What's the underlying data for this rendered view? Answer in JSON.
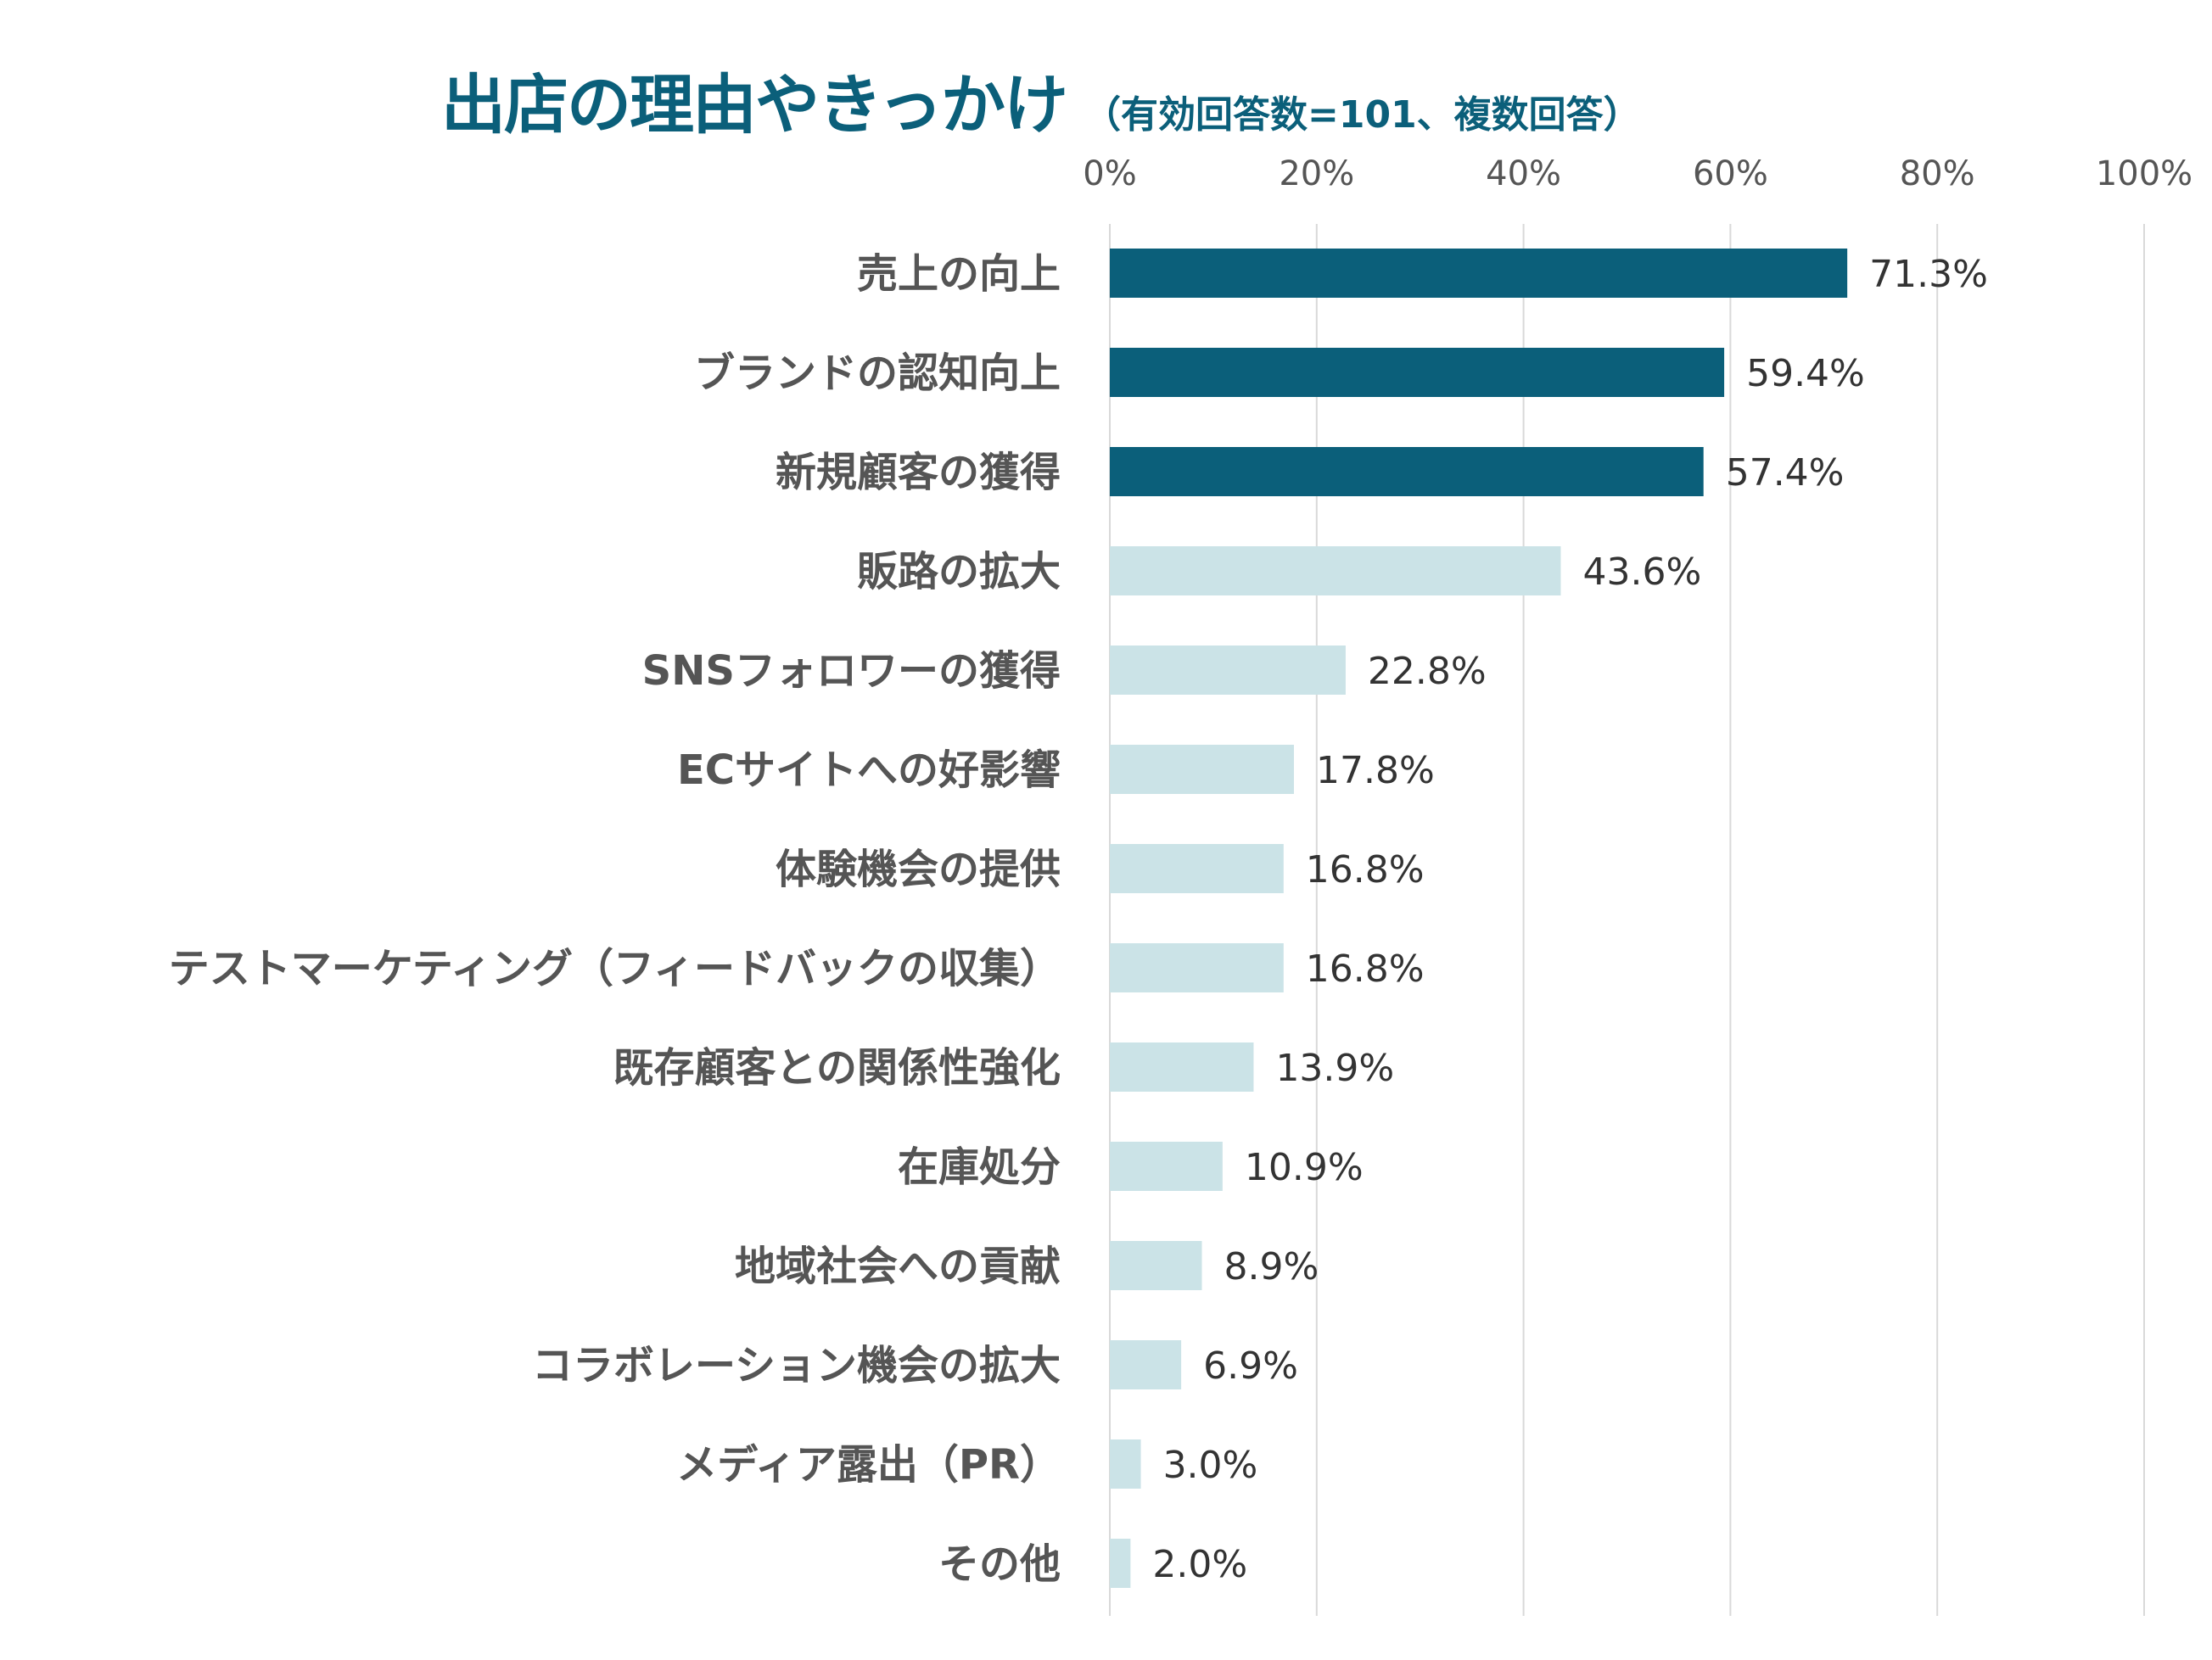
{
  "chart_data": {
    "type": "bar",
    "orientation": "horizontal",
    "title": "出店の理由やきっかけ",
    "subtitle": "（有効回答数=101、複数回答）",
    "xlabel": "",
    "ylabel": "",
    "xlim": [
      0,
      100
    ],
    "x_ticks": [
      "0%",
      "20%",
      "40%",
      "60%",
      "80%",
      "100%"
    ],
    "x_tick_values": [
      0,
      20,
      40,
      60,
      80,
      100
    ],
    "grid": true,
    "value_format": "percent",
    "categories": [
      "売上の向上",
      "ブランドの認知向上",
      "新規顧客の獲得",
      "販路の拡大",
      "SNSフォロワーの獲得",
      "ECサイトへの好影響",
      "体験機会の提供",
      "テストマーケティング（フィードバックの収集）",
      "既存顧客との関係性強化",
      "在庫処分",
      "地域社会への貢献",
      "コラボレーション機会の拡大",
      "メディア露出（PR）",
      "その他"
    ],
    "values": [
      71.3,
      59.4,
      57.4,
      43.6,
      22.8,
      17.8,
      16.8,
      16.8,
      13.9,
      10.9,
      8.9,
      6.9,
      3.0,
      2.0
    ],
    "value_labels": [
      "71.3%",
      "59.4%",
      "57.4%",
      "43.6%",
      "22.8%",
      "17.8%",
      "16.8%",
      "16.8%",
      "13.9%",
      "10.9%",
      "8.9%",
      "6.9%",
      "3.0%",
      "2.0%"
    ],
    "highlight_count": 3,
    "colors": {
      "highlight": "#0b5f7a",
      "normal": "#cbe3e7",
      "title": "#0b5f7a",
      "text": "#555555",
      "grid": "#d9d9d9"
    }
  }
}
